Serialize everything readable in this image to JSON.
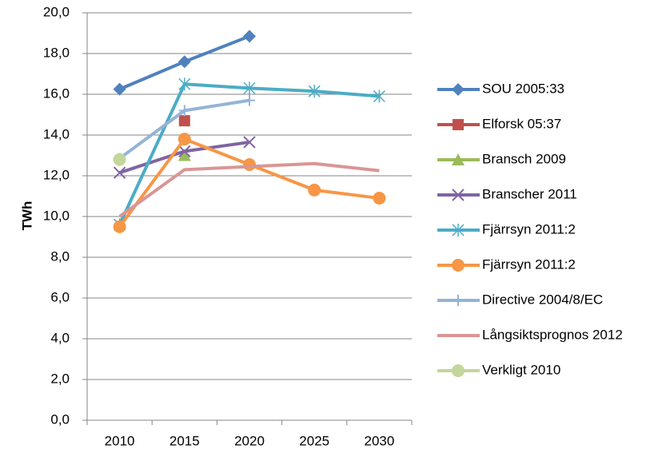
{
  "chart_data": {
    "type": "line",
    "y_label": "TWh",
    "categories": [
      "2010",
      "2015",
      "2020",
      "2025",
      "2030"
    ],
    "ylim": [
      0,
      20
    ],
    "yticks": [
      {
        "value": 0,
        "label": "0,0"
      },
      {
        "value": 2,
        "label": "2,0"
      },
      {
        "value": 4,
        "label": "4,0"
      },
      {
        "value": 6,
        "label": "6,0"
      },
      {
        "value": 8,
        "label": "8,0"
      },
      {
        "value": 10,
        "label": "10,0"
      },
      {
        "value": 12,
        "label": "12,0"
      },
      {
        "value": 14,
        "label": "14,0"
      },
      {
        "value": 16,
        "label": "16,0"
      },
      {
        "value": 18,
        "label": "18,0"
      },
      {
        "value": 20,
        "label": "20,0"
      }
    ],
    "grid": true,
    "legend": "right",
    "series": [
      {
        "name": "SOU 2005:33",
        "color": "#4f81bd",
        "marker": "diamond",
        "values": [
          16.25,
          17.6,
          18.85,
          null,
          null
        ]
      },
      {
        "name": "Elforsk 05:37",
        "color": "#c0504d",
        "marker": "square",
        "values": [
          null,
          14.7,
          null,
          null,
          null
        ]
      },
      {
        "name": "Bransch 2009",
        "color": "#9bbb59",
        "marker": "triangle",
        "values": [
          null,
          13.0,
          null,
          null,
          null
        ]
      },
      {
        "name": "Branscher 2011",
        "color": "#8064a2",
        "marker": "x",
        "values": [
          12.15,
          13.2,
          13.65,
          null,
          null
        ]
      },
      {
        "name": "Fjärrsyn 2011:2",
        "color": "#4bacc6",
        "marker": "star",
        "values": [
          9.6,
          16.5,
          16.3,
          16.15,
          15.9
        ]
      },
      {
        "name": "Fjärrsyn 2011:2",
        "color": "#f79646",
        "marker": "circle",
        "values": [
          9.5,
          13.8,
          12.55,
          11.3,
          10.9
        ]
      },
      {
        "name": "Directive 2004/8/EC",
        "color": "#95b3d7",
        "marker": "plus",
        "values": [
          12.85,
          15.2,
          15.7,
          null,
          null
        ]
      },
      {
        "name": "Långsiktsprognos 2012",
        "color": "#d99694",
        "marker": "none",
        "values": [
          10.0,
          12.3,
          12.45,
          12.6,
          12.25
        ]
      },
      {
        "name": "Verkligt 2010",
        "color": "#c3d69b",
        "marker": "circle",
        "values": [
          12.8,
          null,
          null,
          null,
          null
        ]
      }
    ]
  }
}
